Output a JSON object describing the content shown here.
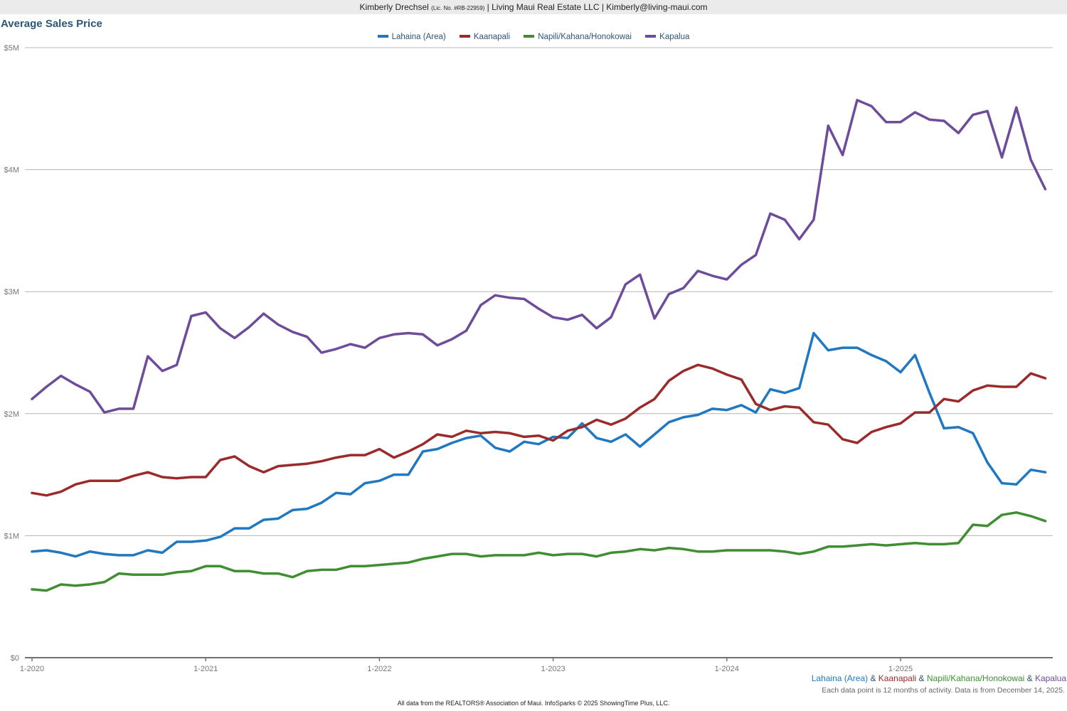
{
  "header": {
    "name": "Kimberly Drechsel",
    "license": "(Lic. No. #RB-22959)",
    "rest": "| Living Maui Real Estate LLC | Kimberly@living-maui.com"
  },
  "footer": {
    "areas": [
      "Lahaina (Area)",
      "Kaanapali",
      "Napili/Kahana/Honokowai",
      "Kapalua"
    ],
    "separator": " & ",
    "note": "Each data point is 12 months of activity. Data is from December 14, 2025.",
    "source": "All data from the REALTORS® Association of Maui. InfoSparks © 2025 ShowingTime Plus, LLC."
  },
  "chart_data": {
    "type": "line",
    "title": "Average Sales Price",
    "xlabel": "",
    "ylabel": "",
    "ylim": [
      0,
      5000000
    ],
    "grid": true,
    "legend_position": "top",
    "y_ticks": [
      0,
      1000000,
      2000000,
      3000000,
      4000000,
      5000000
    ],
    "y_tick_labels": [
      "$0",
      "$1M",
      "$2M",
      "$3M",
      "$4M",
      "$5M"
    ],
    "x_ticks": [
      "1-2020",
      "1-2021",
      "1-2022",
      "1-2023",
      "1-2024",
      "1-2025"
    ],
    "x": [
      "1-2020",
      "2-2020",
      "3-2020",
      "4-2020",
      "5-2020",
      "6-2020",
      "7-2020",
      "8-2020",
      "9-2020",
      "10-2020",
      "11-2020",
      "12-2020",
      "1-2021",
      "2-2021",
      "3-2021",
      "4-2021",
      "5-2021",
      "6-2021",
      "7-2021",
      "8-2021",
      "9-2021",
      "10-2021",
      "11-2021",
      "12-2021",
      "1-2022",
      "2-2022",
      "3-2022",
      "4-2022",
      "5-2022",
      "6-2022",
      "7-2022",
      "8-2022",
      "9-2022",
      "10-2022",
      "11-2022",
      "12-2022",
      "1-2023",
      "2-2023",
      "3-2023",
      "4-2023",
      "5-2023",
      "6-2023",
      "7-2023",
      "8-2023",
      "9-2023",
      "10-2023",
      "11-2023",
      "12-2023",
      "1-2024",
      "2-2024",
      "3-2024",
      "4-2024",
      "5-2024",
      "6-2024",
      "7-2024",
      "8-2024",
      "9-2024",
      "10-2024",
      "11-2024",
      "12-2024",
      "1-2025",
      "2-2025",
      "3-2025",
      "4-2025",
      "5-2025",
      "6-2025",
      "7-2025",
      "8-2025",
      "9-2025",
      "10-2025",
      "11-2025"
    ],
    "series": [
      {
        "name": "Lahaina (Area)",
        "color": "#1f78c1",
        "values": [
          870000,
          880000,
          860000,
          830000,
          870000,
          850000,
          840000,
          840000,
          880000,
          860000,
          950000,
          950000,
          960000,
          990000,
          1060000,
          1060000,
          1130000,
          1140000,
          1210000,
          1220000,
          1270000,
          1350000,
          1340000,
          1430000,
          1450000,
          1500000,
          1500000,
          1690000,
          1710000,
          1760000,
          1800000,
          1820000,
          1720000,
          1690000,
          1770000,
          1750000,
          1810000,
          1800000,
          1920000,
          1800000,
          1770000,
          1830000,
          1730000,
          1830000,
          1930000,
          1970000,
          1990000,
          2040000,
          2030000,
          2070000,
          2010000,
          2200000,
          2170000,
          2210000,
          2660000,
          2520000,
          2540000,
          2540000,
          2480000,
          2430000,
          2340000,
          2480000,
          2170000,
          1880000,
          1890000,
          1840000,
          1600000,
          1430000,
          1420000,
          1540000,
          1520000
        ]
      },
      {
        "name": "Kaanapali",
        "color": "#9b2a2a",
        "values": [
          1350000,
          1330000,
          1360000,
          1420000,
          1450000,
          1450000,
          1450000,
          1490000,
          1520000,
          1480000,
          1470000,
          1480000,
          1480000,
          1620000,
          1650000,
          1570000,
          1520000,
          1570000,
          1580000,
          1590000,
          1610000,
          1640000,
          1660000,
          1660000,
          1710000,
          1640000,
          1690000,
          1750000,
          1830000,
          1810000,
          1860000,
          1840000,
          1850000,
          1840000,
          1810000,
          1820000,
          1780000,
          1860000,
          1890000,
          1950000,
          1910000,
          1960000,
          2050000,
          2120000,
          2270000,
          2350000,
          2400000,
          2370000,
          2320000,
          2280000,
          2080000,
          2030000,
          2060000,
          2050000,
          1930000,
          1910000,
          1790000,
          1760000,
          1850000,
          1890000,
          1920000,
          2010000,
          2010000,
          2120000,
          2100000,
          2190000,
          2230000,
          2220000,
          2220000,
          2330000,
          2290000
        ]
      },
      {
        "name": "Napili/Kahana/Honokowai",
        "color": "#3f8f32",
        "values": [
          560000,
          550000,
          600000,
          590000,
          600000,
          620000,
          690000,
          680000,
          680000,
          680000,
          700000,
          710000,
          750000,
          750000,
          710000,
          710000,
          690000,
          690000,
          660000,
          710000,
          720000,
          720000,
          750000,
          750000,
          760000,
          770000,
          780000,
          810000,
          830000,
          850000,
          850000,
          830000,
          840000,
          840000,
          840000,
          860000,
          840000,
          850000,
          850000,
          830000,
          860000,
          870000,
          890000,
          880000,
          900000,
          890000,
          870000,
          870000,
          880000,
          880000,
          880000,
          880000,
          870000,
          850000,
          870000,
          910000,
          910000,
          920000,
          930000,
          920000,
          930000,
          940000,
          930000,
          930000,
          940000,
          1090000,
          1080000,
          1170000,
          1190000,
          1160000,
          1120000
        ]
      },
      {
        "name": "Kapalua",
        "color": "#6e4c9c",
        "values": [
          2120000,
          2220000,
          2310000,
          2240000,
          2180000,
          2010000,
          2040000,
          2040000,
          2470000,
          2350000,
          2400000,
          2800000,
          2830000,
          2700000,
          2620000,
          2710000,
          2820000,
          2730000,
          2670000,
          2630000,
          2500000,
          2530000,
          2570000,
          2540000,
          2620000,
          2650000,
          2660000,
          2650000,
          2560000,
          2610000,
          2680000,
          2890000,
          2970000,
          2950000,
          2940000,
          2860000,
          2790000,
          2770000,
          2810000,
          2700000,
          2790000,
          3060000,
          3140000,
          2780000,
          2980000,
          3030000,
          3170000,
          3130000,
          3100000,
          3220000,
          3300000,
          3640000,
          3590000,
          3430000,
          3590000,
          4360000,
          4120000,
          4570000,
          4520000,
          4390000,
          4390000,
          4470000,
          4410000,
          4400000,
          4300000,
          4450000,
          4480000,
          4100000,
          4510000,
          4080000,
          3840000
        ]
      }
    ]
  }
}
